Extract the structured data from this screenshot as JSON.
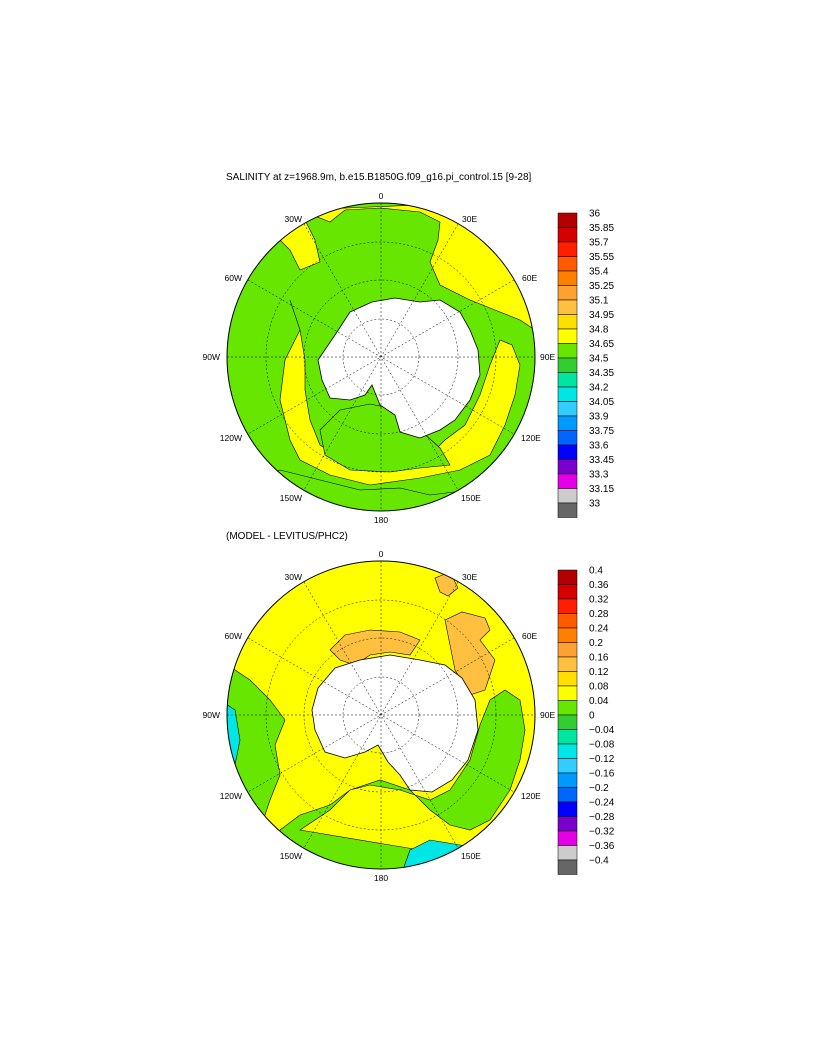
{
  "panel1": {
    "title": "SALINITY at z=1968.9m, b.e15.B1850G.f09_g16.pi_control.15 [9-28]",
    "lon_labels": [
      "0",
      "30E",
      "60E",
      "90E",
      "120E",
      "150E",
      "180",
      "150W",
      "120W",
      "90W",
      "60W",
      "30W"
    ],
    "colorbar": {
      "labels": [
        "36",
        "35.85",
        "35.7",
        "35.55",
        "35.4",
        "35.25",
        "35.1",
        "34.95",
        "34.8",
        "34.65",
        "34.5",
        "34.35",
        "34.2",
        "34.05",
        "33.9",
        "33.75",
        "33.6",
        "33.45",
        "33.3",
        "33.15",
        "33"
      ],
      "colors": [
        "#b30000",
        "#d60000",
        "#ff1f00",
        "#ff5a00",
        "#ff8000",
        "#ffa033",
        "#ffc040",
        "#ffde00",
        "#ffff00",
        "#66e600",
        "#33cc33",
        "#00e6a0",
        "#00e6e6",
        "#33ccff",
        "#0099ff",
        "#0066ff",
        "#0000ff",
        "#7a00cc",
        "#e600e6",
        "#cccccc",
        "#666666"
      ]
    }
  },
  "panel2": {
    "title": "(MODEL - LEVITUS/PHC2)",
    "lon_labels": [
      "0",
      "30E",
      "60E",
      "90E",
      "120E",
      "150E",
      "180",
      "150W",
      "120W",
      "90W",
      "60W",
      "30W"
    ],
    "colorbar": {
      "labels": [
        "0.4",
        "0.36",
        "0.32",
        "0.28",
        "0.24",
        "0.2",
        "0.16",
        "0.12",
        "0.08",
        "0.04",
        "0",
        "−0.04",
        "−0.08",
        "−0.12",
        "−0.16",
        "−0.2",
        "−0.24",
        "−0.28",
        "−0.32",
        "−0.36",
        "−0.4"
      ],
      "colors": [
        "#b30000",
        "#d60000",
        "#ff1f00",
        "#ff5a00",
        "#ff8000",
        "#ffa033",
        "#ffc040",
        "#ffde00",
        "#ffff00",
        "#66e600",
        "#33cc33",
        "#00e6a0",
        "#00e6e6",
        "#33ccff",
        "#0099ff",
        "#0066ff",
        "#0000ff",
        "#7a00cc",
        "#e600e6",
        "#cccccc",
        "#666666"
      ]
    }
  }
}
